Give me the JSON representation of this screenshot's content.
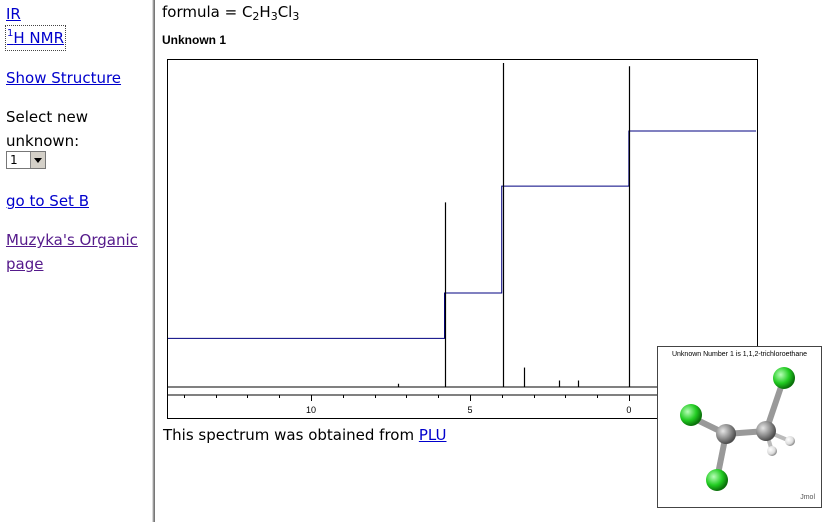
{
  "nav": {
    "ir": "IR",
    "hnmr_sup": "1",
    "hnmr": "H NMR",
    "show_structure": "Show Structure",
    "select_label": "Select new unknown:",
    "select_value": "1",
    "go_set_b": "go to Set B",
    "muzyka": "Muzyka's Organic page"
  },
  "formula": {
    "prefix": "formula = C",
    "c_count": "2",
    "h": "H",
    "h_count": "3",
    "cl": "Cl",
    "cl_count": "3"
  },
  "unknown_title": "Unknown 1",
  "source": {
    "text": "This spectrum was obtained from ",
    "link": "PLU"
  },
  "molecule": {
    "caption": "Unknown Number 1 is 1,1,2-trichloroethane",
    "watermark": "Jmol"
  },
  "colors": {
    "link": "#0000cc",
    "visited": "#551a8b",
    "integral": "#000080",
    "chlorine": "#22cc22",
    "carbon": "#909090"
  },
  "chart_data": {
    "type": "line",
    "xlabel": "",
    "ylabel": "",
    "xlim": [
      14.5,
      -4
    ],
    "x_axis_reversed": true,
    "tick_labels": [
      "10",
      "5",
      "0"
    ],
    "tick_values": [
      10,
      5,
      0
    ],
    "grid": false,
    "series": [
      {
        "peaks_ppm": [
          5.77,
          3.96,
          0.0,
          3.3,
          2.2,
          1.6,
          7.26
        ],
        "peak_heights": [
          0.57,
          1.0,
          0.99,
          0.06,
          0.02,
          0.02,
          0.01
        ]
      }
    ],
    "integral_steps_ppm": [
      5.8,
      4.0,
      0.0
    ],
    "integral_levels": [
      0.15,
      0.29,
      0.62,
      0.79
    ]
  }
}
